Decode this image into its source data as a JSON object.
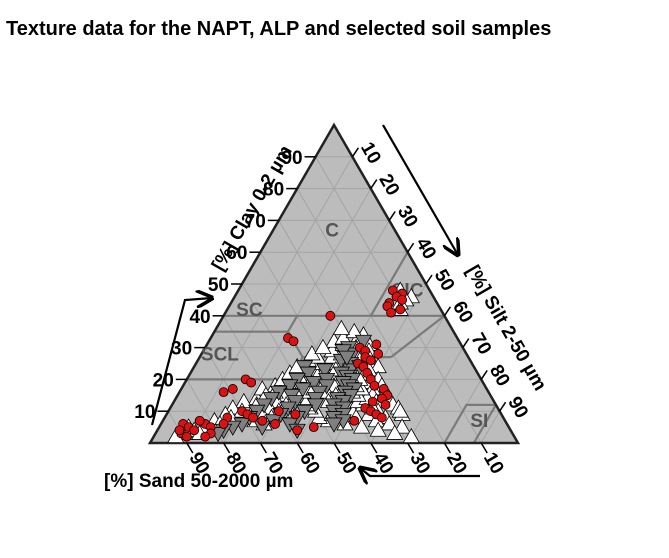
{
  "title": "Texture data for the NAPT, ALP and selected soil samples",
  "colors": {
    "triangle_fill": "#bcbcbc",
    "grid": "#a4a4a4",
    "class_borders": "#7a7a7a",
    "outline": "#222222",
    "region_text": "#555555",
    "marker_up": "#ffffff",
    "marker_down": "#808080",
    "marker_sample": "#dd1111"
  },
  "chart_data": {
    "type": "ternary",
    "axes": {
      "clay": {
        "label": "[%] Clay 0-2 µm",
        "ticks": [
          "10",
          "20",
          "30",
          "40",
          "50",
          "60",
          "70",
          "80",
          "90"
        ]
      },
      "silt": {
        "label": "[%] Silt 2-50 µm",
        "ticks": [
          "10",
          "20",
          "30",
          "40",
          "50",
          "60",
          "70",
          "80",
          "90"
        ]
      },
      "sand": {
        "label": "[%] Sand 50-2000 µm",
        "ticks": [
          "10",
          "20",
          "30",
          "40",
          "50",
          "60",
          "70",
          "80",
          "90"
        ]
      }
    },
    "texture_classes": [
      "C",
      "SIC",
      "SC",
      "SCL",
      "SI"
    ],
    "series": [
      {
        "marker": "triangle-up-white",
        "points": [
          [
            46,
            48,
            6
          ],
          [
            48,
            44,
            8
          ],
          [
            45,
            47,
            8
          ],
          [
            44,
            46,
            10
          ],
          [
            42,
            47,
            11
          ],
          [
            34,
            41,
            25
          ],
          [
            33,
            40,
            27
          ],
          [
            31,
            44,
            25
          ],
          [
            30,
            41,
            29
          ],
          [
            29,
            45,
            26
          ],
          [
            28,
            43,
            29
          ],
          [
            27,
            46,
            27
          ],
          [
            26,
            44,
            30
          ],
          [
            25,
            47,
            28
          ],
          [
            24,
            50,
            26
          ],
          [
            23,
            48,
            29
          ],
          [
            22,
            46,
            32
          ],
          [
            21,
            49,
            30
          ],
          [
            20,
            52,
            28
          ],
          [
            19,
            50,
            31
          ],
          [
            18,
            54,
            28
          ],
          [
            17,
            52,
            31
          ],
          [
            16,
            56,
            28
          ],
          [
            15,
            53,
            32
          ],
          [
            14,
            58,
            28
          ],
          [
            13,
            55,
            32
          ],
          [
            12,
            60,
            28
          ],
          [
            11,
            62,
            27
          ],
          [
            10,
            57,
            33
          ],
          [
            9,
            64,
            27
          ],
          [
            8,
            60,
            32
          ],
          [
            25,
            38,
            37
          ],
          [
            24,
            35,
            41
          ],
          [
            23,
            33,
            44
          ],
          [
            22,
            36,
            42
          ],
          [
            21,
            40,
            39
          ],
          [
            20,
            42,
            38
          ],
          [
            19,
            38,
            43
          ],
          [
            18,
            41,
            41
          ],
          [
            17,
            44,
            39
          ],
          [
            16,
            40,
            44
          ],
          [
            15,
            43,
            42
          ],
          [
            14,
            46,
            40
          ],
          [
            13,
            42,
            45
          ],
          [
            12,
            48,
            40
          ],
          [
            11,
            45,
            44
          ],
          [
            10,
            50,
            40
          ],
          [
            26,
            32,
            42
          ],
          [
            27,
            36,
            37
          ],
          [
            28,
            38,
            34
          ],
          [
            29,
            35,
            36
          ],
          [
            31,
            37,
            32
          ],
          [
            32,
            34,
            34
          ],
          [
            24,
            42,
            34
          ],
          [
            23,
            39,
            38
          ],
          [
            21,
            35,
            44
          ],
          [
            20,
            33,
            47
          ],
          [
            19,
            31,
            50
          ],
          [
            18,
            34,
            48
          ],
          [
            17,
            30,
            53
          ],
          [
            16,
            33,
            51
          ],
          [
            15,
            29,
            56
          ],
          [
            14,
            32,
            54
          ],
          [
            13,
            28,
            59
          ],
          [
            12,
            31,
            57
          ],
          [
            11,
            27,
            62
          ],
          [
            10,
            30,
            60
          ],
          [
            9,
            26,
            65
          ],
          [
            8,
            29,
            63
          ],
          [
            7,
            25,
            68
          ],
          [
            6,
            28,
            66
          ],
          [
            14,
            22,
            64
          ],
          [
            13,
            19,
            68
          ],
          [
            12,
            23,
            65
          ],
          [
            11,
            17,
            72
          ],
          [
            10,
            20,
            70
          ],
          [
            9,
            16,
            75
          ],
          [
            8,
            18,
            74
          ],
          [
            7,
            14,
            79
          ],
          [
            6,
            16,
            78
          ],
          [
            5,
            12,
            83
          ],
          [
            4,
            10,
            86
          ],
          [
            3,
            8,
            89
          ],
          [
            2,
            6,
            92
          ],
          [
            5,
            8,
            87
          ],
          [
            3,
            12,
            85
          ],
          [
            18,
            25,
            57
          ],
          [
            17,
            22,
            61
          ],
          [
            16,
            26,
            58
          ],
          [
            15,
            24,
            61
          ],
          [
            19,
            28,
            53
          ],
          [
            20,
            26,
            54
          ],
          [
            21,
            30,
            49
          ],
          [
            22,
            27,
            51
          ],
          [
            23,
            30,
            47
          ],
          [
            24,
            28,
            48
          ],
          [
            25,
            33,
            42
          ],
          [
            26,
            30,
            44
          ],
          [
            27,
            32,
            41
          ],
          [
            28,
            30,
            42
          ],
          [
            30,
            32,
            38
          ],
          [
            33,
            36,
            31
          ],
          [
            35,
            38,
            27
          ],
          [
            36,
            34,
            30
          ],
          [
            9,
            55,
            36
          ],
          [
            8,
            52,
            40
          ],
          [
            7,
            58,
            35
          ],
          [
            6,
            62,
            32
          ],
          [
            5,
            66,
            29
          ],
          [
            10,
            63,
            27
          ],
          [
            11,
            55,
            34
          ],
          [
            12,
            52,
            36
          ],
          [
            13,
            50,
            37
          ],
          [
            14,
            52,
            34
          ],
          [
            15,
            49,
            36
          ],
          [
            16,
            47,
            37
          ],
          [
            17,
            49,
            34
          ],
          [
            18,
            47,
            35
          ],
          [
            19,
            45,
            36
          ],
          [
            20,
            47,
            33
          ],
          [
            21,
            44,
            35
          ],
          [
            22,
            43,
            35
          ],
          [
            7,
            45,
            48
          ],
          [
            8,
            42,
            50
          ],
          [
            9,
            45,
            46
          ],
          [
            10,
            40,
            50
          ],
          [
            11,
            38,
            51
          ],
          [
            12,
            37,
            51
          ],
          [
            13,
            36,
            51
          ],
          [
            6,
            50,
            44
          ],
          [
            5,
            55,
            40
          ],
          [
            4,
            60,
            36
          ],
          [
            3,
            65,
            32
          ],
          [
            2,
            70,
            28
          ],
          [
            15,
            37,
            48
          ],
          [
            14,
            36,
            50
          ],
          [
            16,
            35,
            49
          ],
          [
            17,
            36,
            47
          ]
        ]
      },
      {
        "marker": "triangle-down-gray",
        "points": [
          [
            32,
            42,
            26
          ],
          [
            30,
            39,
            31
          ],
          [
            28,
            41,
            31
          ],
          [
            26,
            39,
            35
          ],
          [
            25,
            42,
            33
          ],
          [
            24,
            45,
            31
          ],
          [
            23,
            43,
            34
          ],
          [
            22,
            41,
            37
          ],
          [
            21,
            43,
            36
          ],
          [
            20,
            45,
            35
          ],
          [
            19,
            43,
            38
          ],
          [
            18,
            45,
            37
          ],
          [
            17,
            47,
            36
          ],
          [
            16,
            45,
            39
          ],
          [
            15,
            47,
            38
          ],
          [
            14,
            44,
            42
          ],
          [
            13,
            46,
            41
          ],
          [
            12,
            44,
            44
          ],
          [
            11,
            47,
            42
          ],
          [
            10,
            45,
            45
          ],
          [
            9,
            48,
            43
          ],
          [
            8,
            46,
            46
          ],
          [
            7,
            49,
            44
          ],
          [
            6,
            47,
            47
          ],
          [
            24,
            30,
            46
          ],
          [
            22,
            32,
            46
          ],
          [
            20,
            30,
            50
          ],
          [
            18,
            29,
            53
          ],
          [
            16,
            27,
            57
          ],
          [
            14,
            26,
            60
          ],
          [
            12,
            25,
            63
          ],
          [
            10,
            24,
            66
          ],
          [
            8,
            23,
            69
          ],
          [
            6,
            22,
            72
          ],
          [
            5,
            20,
            75
          ],
          [
            4,
            18,
            78
          ],
          [
            3,
            17,
            80
          ],
          [
            29,
            38,
            33
          ],
          [
            27,
            40,
            33
          ],
          [
            23,
            36,
            41
          ],
          [
            19,
            35,
            46
          ],
          [
            17,
            33,
            50
          ],
          [
            15,
            31,
            54
          ],
          [
            13,
            33,
            54
          ],
          [
            11,
            32,
            57
          ],
          [
            9,
            31,
            60
          ],
          [
            7,
            30,
            63
          ],
          [
            5,
            28,
            67
          ],
          [
            20,
            38,
            42
          ],
          [
            18,
            39,
            43
          ],
          [
            16,
            38,
            46
          ],
          [
            14,
            38,
            48
          ],
          [
            12,
            39,
            49
          ],
          [
            10,
            37,
            53
          ],
          [
            8,
            36,
            56
          ],
          [
            6,
            35,
            59
          ],
          [
            4,
            38,
            58
          ]
        ]
      },
      {
        "marker": "circle-red",
        "points": [
          [
            48,
            42,
            10
          ],
          [
            47,
            45,
            8
          ],
          [
            46,
            44,
            10
          ],
          [
            44,
            43,
            13
          ],
          [
            43,
            43,
            14
          ],
          [
            42,
            47,
            11
          ],
          [
            41,
            45,
            14
          ],
          [
            45,
            46,
            9
          ],
          [
            40,
            29,
            31
          ],
          [
            33,
            21,
            46
          ],
          [
            32,
            23,
            45
          ],
          [
            31,
            46,
            23
          ],
          [
            30,
            42,
            28
          ],
          [
            29,
            44,
            27
          ],
          [
            28,
            48,
            24
          ],
          [
            27,
            45,
            28
          ],
          [
            26,
            47,
            27
          ],
          [
            25,
            44,
            31
          ],
          [
            24,
            46,
            30
          ],
          [
            22,
            48,
            30
          ],
          [
            20,
            50,
            30
          ],
          [
            18,
            52,
            30
          ],
          [
            17,
            55,
            28
          ],
          [
            15,
            57,
            28
          ],
          [
            14,
            56,
            30
          ],
          [
            13,
            54,
            33
          ],
          [
            12,
            58,
            30
          ],
          [
            11,
            53,
            36
          ],
          [
            10,
            55,
            35
          ],
          [
            9,
            57,
            34
          ],
          [
            8,
            59,
            33
          ],
          [
            7,
            52,
            41
          ],
          [
            20,
            16,
            64
          ],
          [
            19,
            18,
            63
          ],
          [
            17,
            14,
            69
          ],
          [
            16,
            12,
            72
          ],
          [
            10,
            20,
            70
          ],
          [
            9,
            22,
            69
          ],
          [
            8,
            24,
            68
          ],
          [
            7,
            27,
            66
          ],
          [
            6,
            31,
            63
          ],
          [
            5,
            42,
            53
          ],
          [
            4,
            38,
            58
          ],
          [
            6,
            6,
            88
          ],
          [
            5,
            8,
            87
          ],
          [
            4,
            10,
            86
          ],
          [
            3,
            7,
            90
          ],
          [
            2,
            9,
            89
          ],
          [
            6,
            12,
            82
          ],
          [
            5,
            14,
            81
          ],
          [
            3,
            15,
            82
          ],
          [
            2,
            14,
            84
          ],
          [
            7,
            10,
            83
          ],
          [
            4,
            6,
            90
          ],
          [
            8,
            17,
            75
          ],
          [
            6,
            17,
            77
          ],
          [
            10,
            30,
            60
          ],
          [
            9,
            35,
            56
          ]
        ]
      }
    ]
  }
}
